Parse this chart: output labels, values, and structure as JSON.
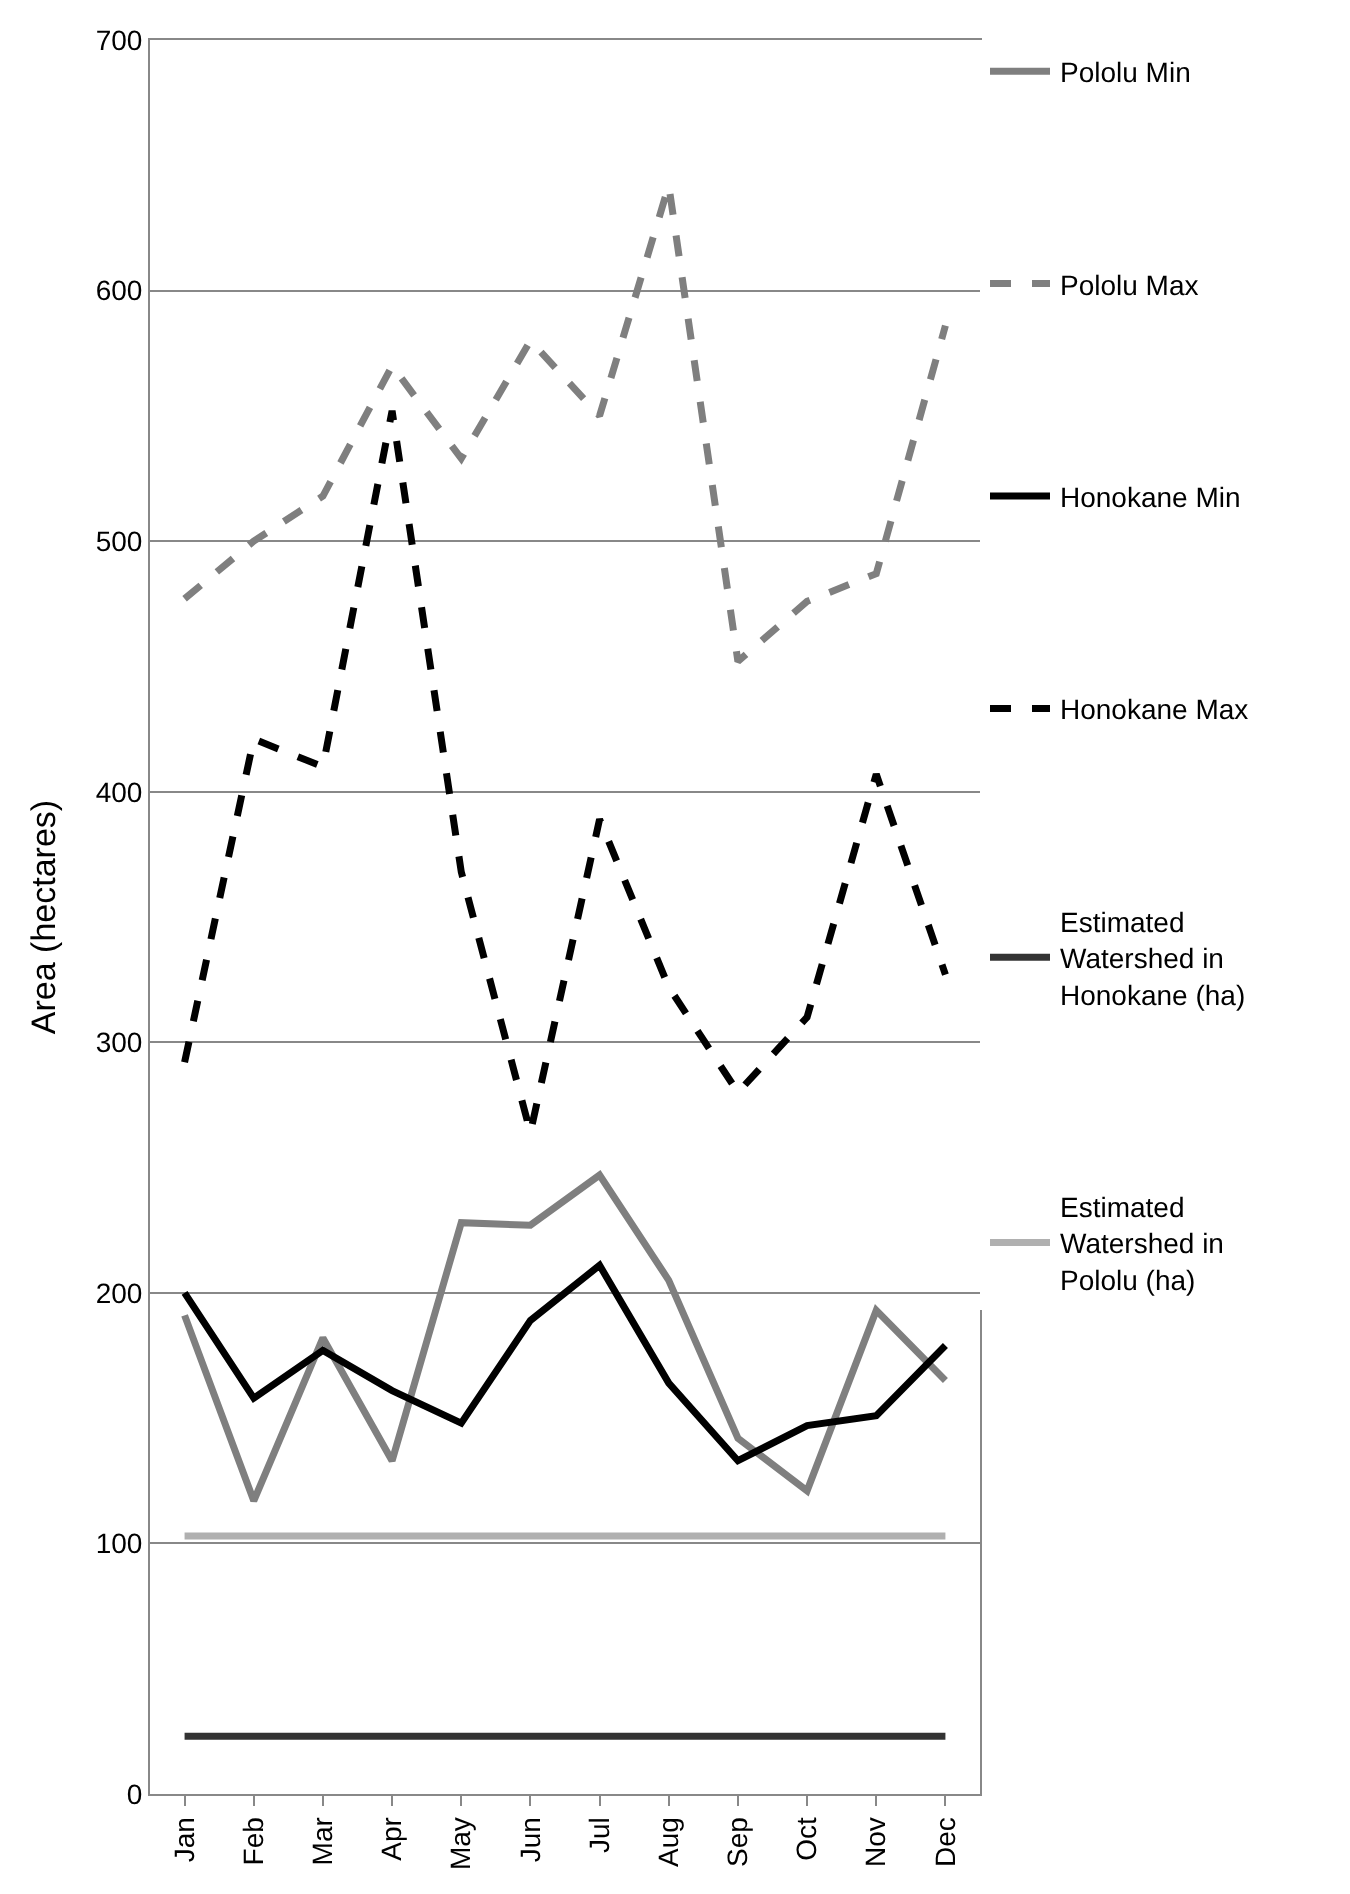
{
  "chart_data": {
    "type": "line",
    "ylabel": "Area (hectares)",
    "categories": [
      "Jan",
      "Feb",
      "Mar",
      "Apr",
      "May",
      "Jun",
      "Jul",
      "Aug",
      "Sep",
      "Oct",
      "Nov",
      "Dec"
    ],
    "series": [
      {
        "name": "Pololu Min",
        "color": "#7f7f7f",
        "line_style": "solid",
        "values": [
          191,
          117,
          182,
          133,
          228,
          227,
          247,
          205,
          142,
          121,
          193,
          165
        ]
      },
      {
        "name": "Pololu Max",
        "color": "#7f7f7f",
        "line_style": "dashed",
        "values": [
          477,
          500,
          518,
          570,
          533,
          580,
          550,
          642,
          452,
          476,
          487,
          586
        ]
      },
      {
        "name": "Honokane Min",
        "color": "#000000",
        "line_style": "solid",
        "values": [
          200,
          158,
          177,
          161,
          148,
          189,
          211,
          164,
          133,
          147,
          151,
          179
        ]
      },
      {
        "name": "Honokane Max",
        "color": "#000000",
        "line_style": "dashed",
        "values": [
          292,
          421,
          410,
          552,
          368,
          264,
          389,
          322,
          280,
          310,
          407,
          327
        ]
      },
      {
        "name": "Estimated Watershed in Honokane (ha)",
        "color": "#333333",
        "line_style": "solid",
        "values": [
          23,
          23,
          23,
          23,
          23,
          23,
          23,
          23,
          23,
          23,
          23,
          23
        ]
      },
      {
        "name": "Estimated Watershed in Pololu (ha)",
        "color": "#b0b0b0",
        "line_style": "solid",
        "values": [
          103,
          103,
          103,
          103,
          103,
          103,
          103,
          103,
          103,
          103,
          103,
          103
        ]
      }
    ],
    "ylim": [
      0,
      700
    ],
    "yticks": [
      0,
      100,
      200,
      300,
      400,
      500,
      600,
      700
    ],
    "grid": "y",
    "legend": "right",
    "marker": "none"
  }
}
